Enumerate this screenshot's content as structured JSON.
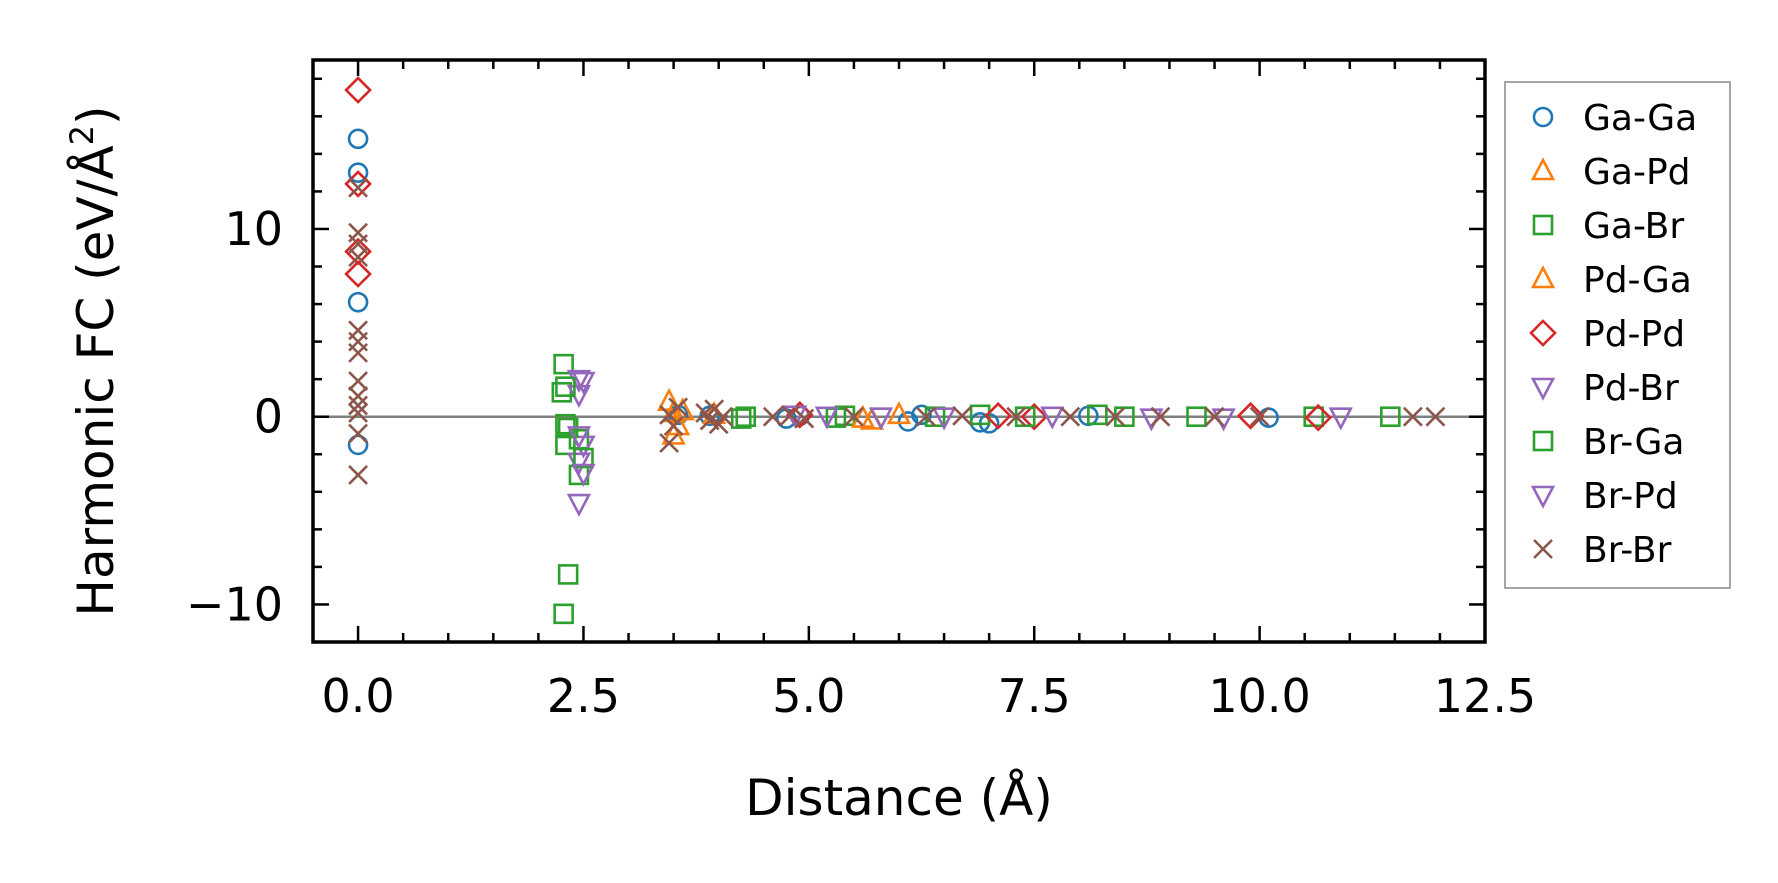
{
  "chart_data": {
    "type": "scatter",
    "xlabel": "Distance (Å)",
    "ylabel": "Harmonic FC (eV/Å²)",
    "ylabel_parts": {
      "main": "Harmonic FC (eV/Å",
      "sup": "2",
      "close": ")"
    },
    "xlim": [
      -0.5,
      12.5
    ],
    "ylim": [
      -12,
      19
    ],
    "x_ticks": [
      0.0,
      2.5,
      5.0,
      7.5,
      10.0,
      12.5
    ],
    "x_tick_labels": [
      "0.0",
      "2.5",
      "5.0",
      "7.5",
      "10.0",
      "12.5"
    ],
    "y_ticks": [
      -10,
      0,
      10
    ],
    "y_tick_labels": [
      "−10",
      "0",
      "10"
    ],
    "reference_line_y": 0,
    "grid": false,
    "legend_position": "outside-right",
    "series": [
      {
        "name": "Ga-Ga",
        "marker": "circle",
        "color": "#1f77b4",
        "points": [
          [
            0,
            14.8
          ],
          [
            0,
            13.0
          ],
          [
            0,
            6.1
          ],
          [
            0,
            -1.5
          ],
          [
            3.55,
            0.1
          ],
          [
            3.9,
            0.05
          ],
          [
            4.75,
            -0.1
          ],
          [
            4.9,
            0.05
          ],
          [
            6.1,
            -0.25
          ],
          [
            6.25,
            0.1
          ],
          [
            6.9,
            -0.3
          ],
          [
            7.0,
            -0.35
          ],
          [
            8.1,
            0.05
          ],
          [
            10.1,
            -0.05
          ]
        ]
      },
      {
        "name": "Ga-Pd",
        "marker": "triangle-up",
        "color": "#ff7f0e",
        "points": [
          [
            3.45,
            0.8
          ],
          [
            3.5,
            -1.0
          ],
          [
            3.6,
            0.3
          ],
          [
            5.7,
            -0.2
          ],
          [
            6.0,
            0.1
          ]
        ]
      },
      {
        "name": "Ga-Br",
        "marker": "square",
        "color": "#2ca02c",
        "points": [
          [
            2.28,
            2.8
          ],
          [
            2.26,
            1.3
          ],
          [
            2.3,
            -0.4
          ],
          [
            2.3,
            -1.5
          ],
          [
            2.33,
            -8.4
          ],
          [
            2.28,
            -10.5
          ],
          [
            2.45,
            -1.2
          ],
          [
            2.45,
            -3.1
          ],
          [
            4.25,
            -0.1
          ],
          [
            5.4,
            0.05
          ],
          [
            6.9,
            0.1
          ],
          [
            8.2,
            0.1
          ],
          [
            10.6,
            0.0
          ],
          [
            11.45,
            0.0
          ]
        ]
      },
      {
        "name": "Pd-Ga",
        "marker": "triangle-up",
        "color": "#ff7f0e",
        "points": [
          [
            3.5,
            0.2
          ],
          [
            3.55,
            -0.5
          ],
          [
            3.95,
            0.1
          ],
          [
            5.6,
            -0.1
          ]
        ]
      },
      {
        "name": "Pd-Pd",
        "marker": "diamond",
        "color": "#d62728",
        "points": [
          [
            0,
            17.4
          ],
          [
            0,
            12.4
          ],
          [
            0,
            8.8
          ],
          [
            0,
            7.6
          ],
          [
            4.9,
            0.1
          ],
          [
            7.1,
            0.05
          ],
          [
            7.5,
            0.0
          ],
          [
            9.9,
            0.05
          ],
          [
            10.65,
            -0.05
          ]
        ]
      },
      {
        "name": "Pd-Br",
        "marker": "triangle-down",
        "color": "#9467bd",
        "points": [
          [
            2.45,
            2.0
          ],
          [
            2.45,
            1.2
          ],
          [
            2.5,
            -1.5
          ],
          [
            2.45,
            -2.4
          ],
          [
            2.45,
            -4.6
          ],
          [
            4.85,
            0.1
          ],
          [
            5.8,
            0.0
          ],
          [
            7.7,
            0.05
          ],
          [
            9.6,
            -0.05
          ],
          [
            10.9,
            0.0
          ]
        ]
      },
      {
        "name": "Br-Ga",
        "marker": "square",
        "color": "#2ca02c",
        "points": [
          [
            2.3,
            1.6
          ],
          [
            2.33,
            -0.6
          ],
          [
            2.5,
            -2.2
          ],
          [
            4.3,
            0.0
          ],
          [
            5.3,
            -0.05
          ],
          [
            6.4,
            0.0
          ],
          [
            7.4,
            0.0
          ],
          [
            8.5,
            0.0
          ],
          [
            9.3,
            0.0
          ]
        ]
      },
      {
        "name": "Br-Pd",
        "marker": "triangle-down",
        "color": "#9467bd",
        "points": [
          [
            2.5,
            1.9
          ],
          [
            2.45,
            -1.0
          ],
          [
            2.5,
            -3.0
          ],
          [
            5.2,
            0.05
          ],
          [
            6.5,
            0.0
          ],
          [
            8.8,
            -0.05
          ]
        ]
      },
      {
        "name": "Br-Br",
        "marker": "x",
        "color": "#8c564b",
        "points": [
          [
            0,
            12.2
          ],
          [
            0,
            9.8
          ],
          [
            0,
            9.2
          ],
          [
            0,
            8.5
          ],
          [
            0,
            4.6
          ],
          [
            0,
            4.0
          ],
          [
            0,
            3.4
          ],
          [
            0,
            1.9
          ],
          [
            0,
            1.1
          ],
          [
            0,
            0.6
          ],
          [
            0,
            0.2
          ],
          [
            0,
            -0.9
          ],
          [
            0,
            -3.1
          ],
          [
            3.45,
            0.1
          ],
          [
            3.45,
            -1.4
          ],
          [
            3.5,
            -0.5
          ],
          [
            3.55,
            0.5
          ],
          [
            3.85,
            0.2
          ],
          [
            3.9,
            -0.2
          ],
          [
            3.95,
            0.4
          ],
          [
            4.0,
            -0.4
          ],
          [
            4.05,
            0.0
          ],
          [
            4.6,
            0.0
          ],
          [
            4.8,
            0.1
          ],
          [
            4.95,
            -0.1
          ],
          [
            5.5,
            0.0
          ],
          [
            6.3,
            0.0
          ],
          [
            6.7,
            0.05
          ],
          [
            7.3,
            0.0
          ],
          [
            7.9,
            0.0
          ],
          [
            8.4,
            0.0
          ],
          [
            8.9,
            0.0
          ],
          [
            9.5,
            0.0
          ],
          [
            10.0,
            0.0
          ],
          [
            11.7,
            0.0
          ],
          [
            11.95,
            0.0
          ]
        ]
      }
    ]
  }
}
